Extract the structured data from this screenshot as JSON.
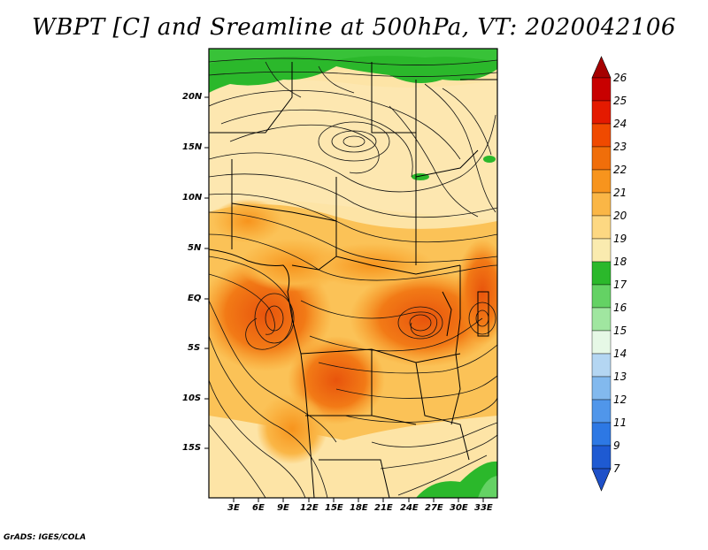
{
  "title": "WBPT [C] and Sreamline at 500hPa, VT: 2020042106",
  "footer": "GrADS: IGES/COLA",
  "map": {
    "lat_labels": [
      "20N",
      "15N",
      "10N",
      "5N",
      "EQ",
      "5S",
      "10S",
      "15S"
    ],
    "lon_labels": [
      "3E",
      "6E",
      "9E",
      "12E",
      "15E",
      "18E",
      "21E",
      "24E",
      "27E",
      "30E",
      "33E"
    ]
  },
  "colorbar": {
    "labels": [
      "26",
      "25",
      "24",
      "23",
      "22",
      "21",
      "20",
      "19",
      "18",
      "17",
      "16",
      "15",
      "14",
      "13",
      "12",
      "11",
      "9",
      "7"
    ],
    "colors": [
      "#a50000",
      "#c80000",
      "#e41a00",
      "#f04a00",
      "#f06e0a",
      "#f7941d",
      "#fab646",
      "#fdd882",
      "#faebaf",
      "#2bb82b",
      "#64d264",
      "#a0e6a0",
      "#e6f8e6",
      "#b4d6f2",
      "#82b9ee",
      "#5096ea",
      "#2d78e4",
      "#1e5ad2",
      "#1e50c8"
    ]
  }
}
